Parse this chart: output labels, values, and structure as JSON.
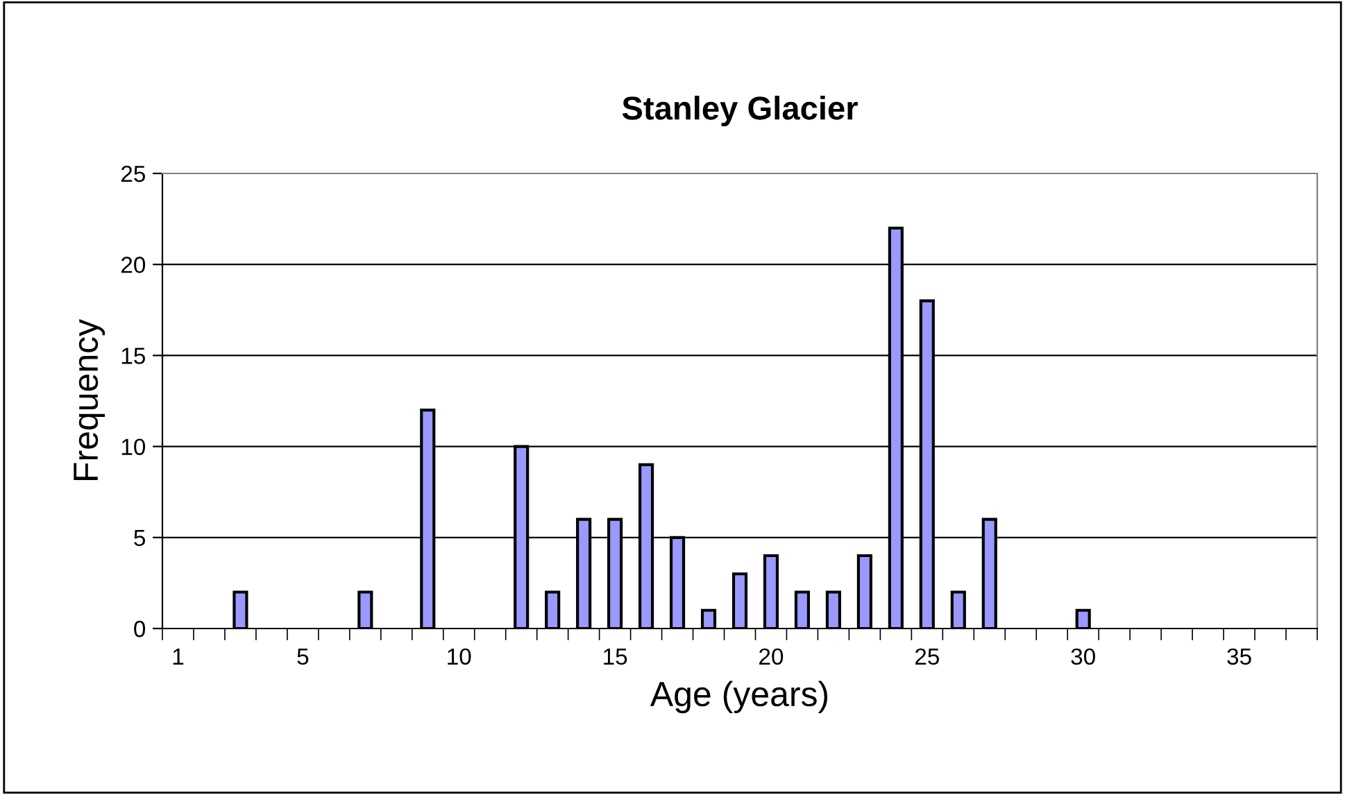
{
  "chart_data": {
    "type": "bar",
    "title": "Stanley Glacier",
    "xlabel": "Age (years)",
    "ylabel": "Frequency",
    "categories": [
      "1",
      null,
      null,
      null,
      "5",
      null,
      null,
      null,
      null,
      "10",
      null,
      null,
      null,
      null,
      "15",
      null,
      null,
      null,
      null,
      "20",
      null,
      null,
      null,
      null,
      "25",
      null,
      null,
      null,
      null,
      "30",
      null,
      null,
      null,
      null,
      "35",
      null,
      null
    ],
    "values": [
      0,
      0,
      2,
      0,
      0,
      0,
      2,
      0,
      12,
      0,
      0,
      10,
      2,
      6,
      6,
      9,
      5,
      1,
      3,
      4,
      2,
      2,
      4,
      22,
      18,
      2,
      6,
      0,
      0,
      1,
      0,
      0,
      0,
      0,
      0,
      0,
      0
    ],
    "color": "#9999ff",
    "ylim": [
      0,
      25
    ],
    "yticks": [
      0,
      5,
      10,
      15,
      20,
      25
    ],
    "grid": "y",
    "legend": false
  }
}
